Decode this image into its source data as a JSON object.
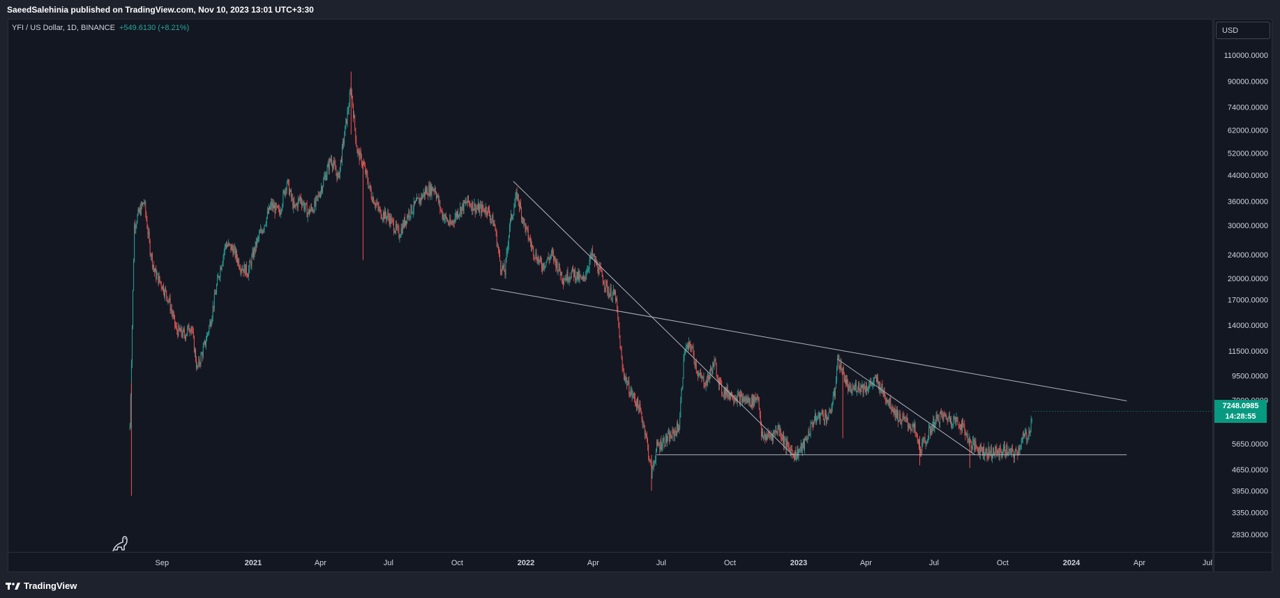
{
  "header": {
    "published": "SaeedSalehinia published on TradingView.com, Nov 10, 2023 13:01 UTC+3:30"
  },
  "legend": {
    "symbol": "YFI / US Dollar, 1D, BINANCE",
    "change": "+549.6130 (+8.21%)"
  },
  "currency_button": "USD",
  "last_price": {
    "value": "7248.0985",
    "countdown": "14:28:55"
  },
  "footer": {
    "brand": "TradingView"
  },
  "colors": {
    "up": "#26a69a",
    "down": "#ef5350",
    "background": "#131722",
    "line": "#b2b5be",
    "badge": "#089981"
  },
  "chart_data": {
    "type": "candlestick",
    "title": "YFI / US Dollar, 1D, BINANCE",
    "y_scale": "log",
    "y_ticks": [
      "110000.0000",
      "90000.0000",
      "74000.0000",
      "62000.0000",
      "52000.0000",
      "44000.0000",
      "36000.0000",
      "30000.0000",
      "24000.0000",
      "20000.0000",
      "17000.0000",
      "14000.0000",
      "11500.0000",
      "9500.0000",
      "7900.0000",
      "5650.0000",
      "4650.0000",
      "3950.0000",
      "3350.0000",
      "2830.0000"
    ],
    "x_ticks": [
      {
        "label": "Sep",
        "bold": false
      },
      {
        "label": "2021",
        "bold": true
      },
      {
        "label": "Apr",
        "bold": false
      },
      {
        "label": "Jul",
        "bold": false
      },
      {
        "label": "Oct",
        "bold": false
      },
      {
        "label": "2022",
        "bold": true
      },
      {
        "label": "Apr",
        "bold": false
      },
      {
        "label": "Jul",
        "bold": false
      },
      {
        "label": "Oct",
        "bold": false
      },
      {
        "label": "2023",
        "bold": true
      },
      {
        "label": "Apr",
        "bold": false
      },
      {
        "label": "Jul",
        "bold": false
      },
      {
        "label": "Oct",
        "bold": false
      },
      {
        "label": "2024",
        "bold": true
      },
      {
        "label": "Apr",
        "bold": false
      },
      {
        "label": "Jul",
        "bold": false
      }
    ],
    "price_path": [
      [
        "2020-07-20",
        6500
      ],
      [
        "2020-07-26",
        30000
      ],
      [
        "2020-08-01",
        33000
      ],
      [
        "2020-08-08",
        36000
      ],
      [
        "2020-08-16",
        25000
      ],
      [
        "2020-08-22",
        21000
      ],
      [
        "2020-09-01",
        19000
      ],
      [
        "2020-09-10",
        17000
      ],
      [
        "2020-09-20",
        13500
      ],
      [
        "2020-10-01",
        13000
      ],
      [
        "2020-10-10",
        14000
      ],
      [
        "2020-10-18",
        10000
      ],
      [
        "2020-10-28",
        12000
      ],
      [
        "2020-11-05",
        14500
      ],
      [
        "2020-11-15",
        20000
      ],
      [
        "2020-11-25",
        26000
      ],
      [
        "2020-12-05",
        25000
      ],
      [
        "2020-12-15",
        22000
      ],
      [
        "2020-12-25",
        21000
      ],
      [
        "2021-01-05",
        26000
      ],
      [
        "2021-01-15",
        30000
      ],
      [
        "2021-01-25",
        35000
      ],
      [
        "2021-02-05",
        33000
      ],
      [
        "2021-02-15",
        42000
      ],
      [
        "2021-02-25",
        34000
      ],
      [
        "2021-03-05",
        37000
      ],
      [
        "2021-03-15",
        33000
      ],
      [
        "2021-03-25",
        35000
      ],
      [
        "2021-04-05",
        42000
      ],
      [
        "2021-04-15",
        50000
      ],
      [
        "2021-04-25",
        43000
      ],
      [
        "2021-05-05",
        65000
      ],
      [
        "2021-05-12",
        85000
      ],
      [
        "2021-05-20",
        53000
      ],
      [
        "2021-05-28",
        48000
      ],
      [
        "2021-06-08",
        38000
      ],
      [
        "2021-06-20",
        33000
      ],
      [
        "2021-07-01",
        32000
      ],
      [
        "2021-07-15",
        28000
      ],
      [
        "2021-07-28",
        33000
      ],
      [
        "2021-08-10",
        36000
      ],
      [
        "2021-08-20",
        39000
      ],
      [
        "2021-09-01",
        40000
      ],
      [
        "2021-09-10",
        33000
      ],
      [
        "2021-09-22",
        30000
      ],
      [
        "2021-10-01",
        33000
      ],
      [
        "2021-10-15",
        36000
      ],
      [
        "2021-10-28",
        34000
      ],
      [
        "2021-11-10",
        34000
      ],
      [
        "2021-11-20",
        30000
      ],
      [
        "2021-11-28",
        22000
      ],
      [
        "2021-12-04",
        21000
      ],
      [
        "2021-12-10",
        30000
      ],
      [
        "2021-12-20",
        38000
      ],
      [
        "2021-12-30",
        30000
      ],
      [
        "2022-01-10",
        25000
      ],
      [
        "2022-01-22",
        22000
      ],
      [
        "2022-02-05",
        24000
      ],
      [
        "2022-02-20",
        20000
      ],
      [
        "2022-03-05",
        21000
      ],
      [
        "2022-03-18",
        19500
      ],
      [
        "2022-03-30",
        24000
      ],
      [
        "2022-04-10",
        21000
      ],
      [
        "2022-04-22",
        18000
      ],
      [
        "2022-05-01",
        17500
      ],
      [
        "2022-05-10",
        10000
      ],
      [
        "2022-05-20",
        8500
      ],
      [
        "2022-06-01",
        7500
      ],
      [
        "2022-06-10",
        6200
      ],
      [
        "2022-06-18",
        4500
      ],
      [
        "2022-06-25",
        5500
      ],
      [
        "2022-07-05",
        5800
      ],
      [
        "2022-07-15",
        6000
      ],
      [
        "2022-07-25",
        6500
      ],
      [
        "2022-08-01",
        11500
      ],
      [
        "2022-08-10",
        12000
      ],
      [
        "2022-08-20",
        9500
      ],
      [
        "2022-08-30",
        9000
      ],
      [
        "2022-09-10",
        10500
      ],
      [
        "2022-09-20",
        8500
      ],
      [
        "2022-10-01",
        8300
      ],
      [
        "2022-10-15",
        8000
      ],
      [
        "2022-10-30",
        7800
      ],
      [
        "2022-11-08",
        8200
      ],
      [
        "2022-11-12",
        6000
      ],
      [
        "2022-11-25",
        6000
      ],
      [
        "2022-12-05",
        6400
      ],
      [
        "2022-12-15",
        5600
      ],
      [
        "2022-12-28",
        5200
      ],
      [
        "2023-01-08",
        5600
      ],
      [
        "2023-01-20",
        6700
      ],
      [
        "2023-02-01",
        7100
      ],
      [
        "2023-02-10",
        6900
      ],
      [
        "2023-02-18",
        8300
      ],
      [
        "2023-02-22",
        10800
      ],
      [
        "2023-03-01",
        9800
      ],
      [
        "2023-03-10",
        8400
      ],
      [
        "2023-03-20",
        8800
      ],
      [
        "2023-04-01",
        8700
      ],
      [
        "2023-04-15",
        9200
      ],
      [
        "2023-04-25",
        8300
      ],
      [
        "2023-05-05",
        7600
      ],
      [
        "2023-05-15",
        6900
      ],
      [
        "2023-05-25",
        6700
      ],
      [
        "2023-06-05",
        6300
      ],
      [
        "2023-06-12",
        5400
      ],
      [
        "2023-06-20",
        5800
      ],
      [
        "2023-06-30",
        6600
      ],
      [
        "2023-07-10",
        7000
      ],
      [
        "2023-07-20",
        6900
      ],
      [
        "2023-08-01",
        6700
      ],
      [
        "2023-08-10",
        6400
      ],
      [
        "2023-08-18",
        5700
      ],
      [
        "2023-08-28",
        5500
      ],
      [
        "2023-09-10",
        5300
      ],
      [
        "2023-09-25",
        5300
      ],
      [
        "2023-10-05",
        5400
      ],
      [
        "2023-10-15",
        5200
      ],
      [
        "2023-10-20",
        5300
      ],
      [
        "2023-10-28",
        5900
      ],
      [
        "2023-11-05",
        6100
      ],
      [
        "2023-11-10",
        7248
      ]
    ],
    "trendlines": [
      {
        "from": [
          "2021-12-15",
          42000
        ],
        "to": [
          "2022-12-24",
          5200
        ]
      },
      {
        "from": [
          "2021-11-15",
          18500
        ],
        "to": [
          "2024-03-15",
          7850
        ]
      },
      {
        "from": [
          "2023-02-22",
          10800
        ],
        "to": [
          "2023-08-25",
          5200
        ]
      },
      {
        "from": [
          "2022-06-25",
          5200
        ],
        "to": [
          "2024-03-15",
          5200
        ]
      }
    ]
  }
}
